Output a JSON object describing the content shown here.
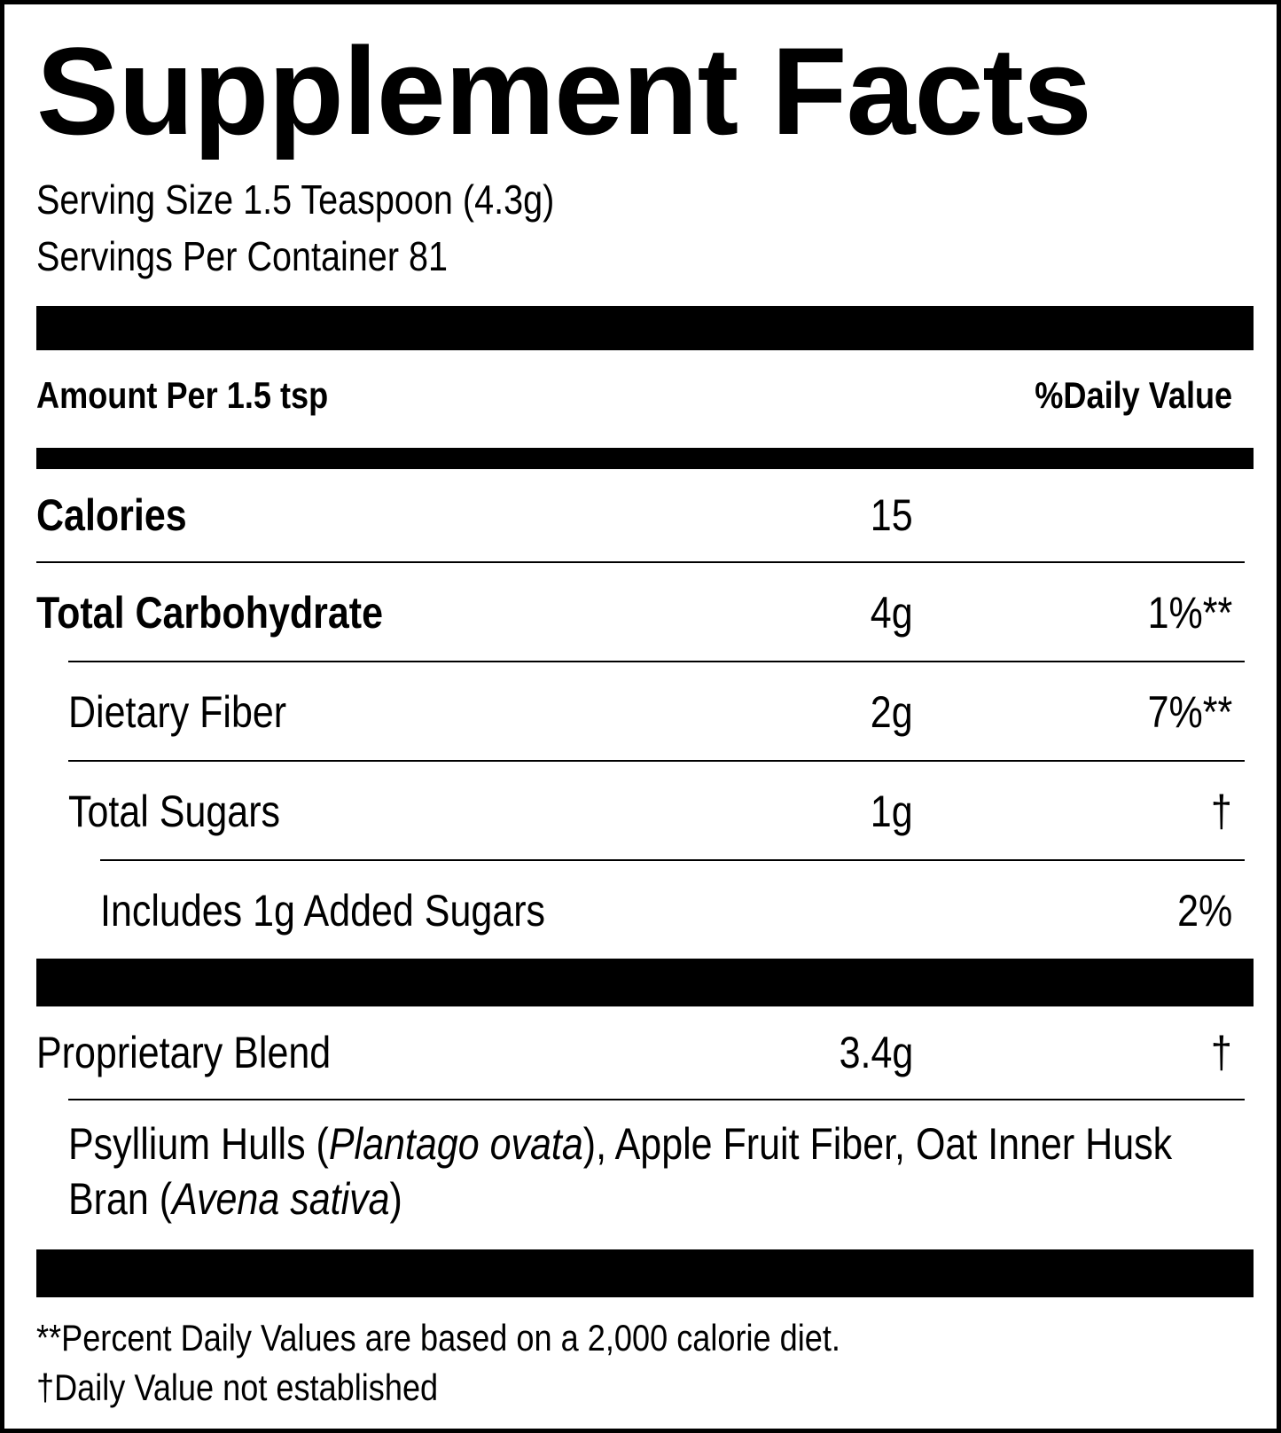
{
  "title": "Supplement Facts",
  "serving_size": "Serving Size 1.5 Teaspoon (4.3g)",
  "servings_per_container": "Servings Per Container 81",
  "header": {
    "amount_per": "Amount Per 1.5 tsp",
    "daily_value": "%Daily Value"
  },
  "nutrients": [
    {
      "name": "Calories",
      "amount": "15",
      "dv": ""
    },
    {
      "name": "Total Carbohydrate",
      "amount": "4g",
      "dv": "1%**"
    },
    {
      "name": "Dietary Fiber",
      "amount": "2g",
      "dv": "7%**"
    },
    {
      "name": "Total Sugars",
      "amount": "1g",
      "dv": "†"
    },
    {
      "name": "Includes 1g Added Sugars",
      "amount": "",
      "dv": "2%"
    }
  ],
  "blend": {
    "name": "Proprietary Blend",
    "amount": "3.4g",
    "dv": "†",
    "ingredients": {
      "part1": "Psyllium Hulls (",
      "italic1": "Plantago ovata",
      "part2": "), Apple Fruit Fiber, Oat Inner Husk Bran (",
      "italic2": "Avena sativa",
      "part3": ")"
    }
  },
  "footnotes": {
    "percent_note": "**Percent Daily Values are based on a 2,000 calorie diet.",
    "dagger_note": "†Daily Value not established"
  }
}
